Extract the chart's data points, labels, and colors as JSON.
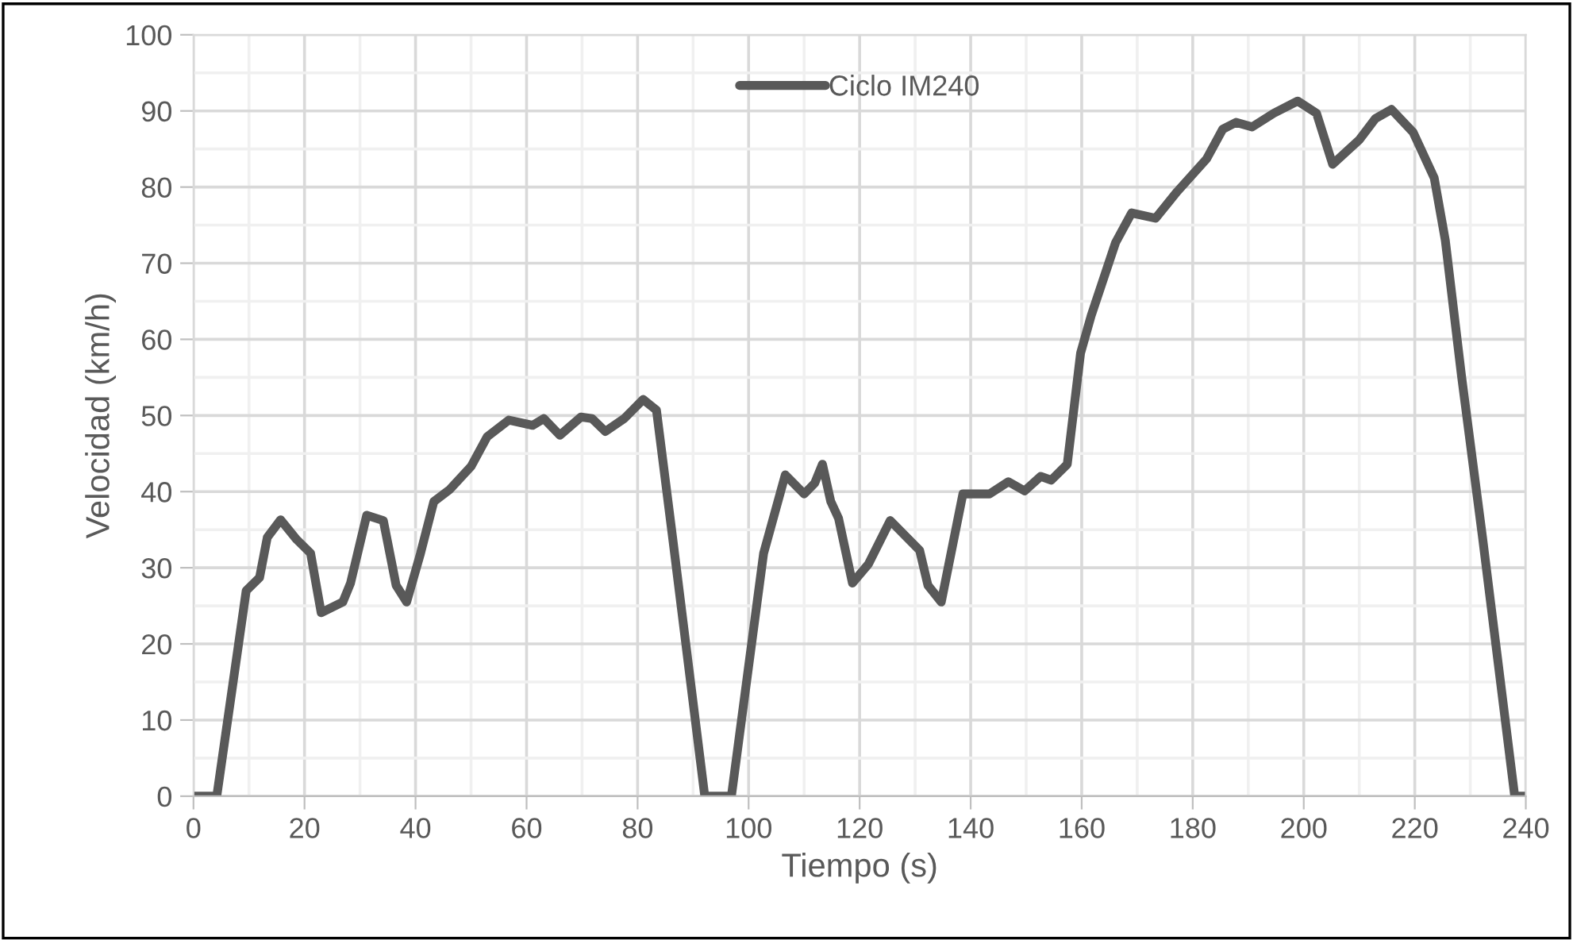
{
  "chart_data": {
    "type": "line",
    "xlabel": "Tiempo (s)",
    "ylabel": "Velocidad (km/h)",
    "xlim": [
      0,
      240
    ],
    "xticks": [
      0,
      20,
      40,
      60,
      80,
      100,
      120,
      140,
      160,
      180,
      200,
      220,
      240
    ],
    "ylim": [
      0,
      100
    ],
    "yticks": [
      0,
      10,
      20,
      30,
      40,
      50,
      60,
      70,
      80,
      90,
      100
    ],
    "grid": true,
    "legend": "top",
    "line_style": "solid",
    "marker": "none",
    "series": [
      {
        "name": "Ciclo IM240",
        "color": "#595959",
        "x": [
          0,
          4.2,
          9.5,
          11.9,
          13.3,
          15.7,
          18.6,
          21.1,
          23,
          26.9,
          28.3,
          31.2,
          34.2,
          36.5,
          38.4,
          40.9,
          43.3,
          46.2,
          50,
          52.9,
          56.8,
          61.1,
          63.1,
          66,
          69.8,
          71.8,
          74.2,
          77.6,
          81,
          83.4,
          86.3,
          92.1,
          96.9,
          102.7,
          106.6,
          110,
          111.9,
          113.3,
          114.8,
          116.2,
          118.7,
          121.6,
          125.5,
          130.8,
          132.3,
          134.7,
          138.6,
          143.4,
          146.8,
          149.7,
          152.6,
          154.5,
          157.4,
          159.8,
          161.7,
          166.1,
          169,
          173.3,
          177.2,
          182.5,
          185.4,
          187.8,
          190.7,
          194.6,
          198.9,
          202.3,
          205.2,
          210,
          212.9,
          215.8,
          219.7,
          223.5,
          225.5,
          228.4,
          232.2,
          238,
          240
        ],
        "values": [
          0,
          0,
          27,
          28.7,
          34,
          36.3,
          33.7,
          31.9,
          24.1,
          25.5,
          28,
          36.9,
          36.2,
          27.7,
          25.5,
          31.9,
          38.7,
          40.3,
          43.3,
          47.2,
          49.4,
          48.7,
          49.6,
          47.4,
          49.8,
          49.6,
          47.9,
          49.6,
          52.1,
          50.7,
          34,
          0,
          0,
          31.9,
          42.2,
          39.7,
          41.1,
          43.6,
          38.7,
          36.5,
          28,
          30.5,
          36.2,
          32.3,
          27.7,
          25.5,
          39.7,
          39.7,
          41.3,
          40.1,
          42,
          41.5,
          43.6,
          58.2,
          63.1,
          72.7,
          76.6,
          75.9,
          79.4,
          83.7,
          87.6,
          88.5,
          87.9,
          89.7,
          91.3,
          89.7,
          83,
          86.2,
          89,
          90.2,
          87.2,
          81.2,
          73,
          55.3,
          34,
          0,
          0
        ]
      }
    ]
  }
}
